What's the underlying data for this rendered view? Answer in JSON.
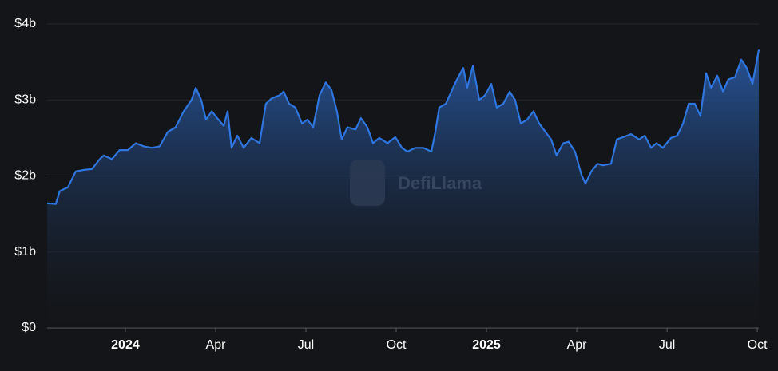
{
  "chart_data": {
    "type": "area",
    "watermark": "DefiLlama",
    "x": [
      -2.6,
      -2.31,
      -2.18,
      -1.91,
      -1.65,
      -1.38,
      -1.11,
      -0.85,
      -0.72,
      -0.45,
      -0.19,
      0.08,
      0.35,
      0.61,
      0.88,
      1.14,
      1.41,
      1.67,
      1.94,
      2.2,
      2.34,
      2.52,
      2.68,
      2.87,
      3.05,
      3.27,
      3.4,
      3.53,
      3.72,
      3.93,
      4.19,
      4.46,
      4.67,
      4.86,
      5.12,
      5.26,
      5.44,
      5.65,
      5.87,
      6.05,
      6.24,
      6.45,
      6.66,
      6.85,
      7.03,
      7.19,
      7.38,
      7.65,
      7.83,
      8.04,
      8.23,
      8.44,
      8.71,
      8.97,
      9.19,
      9.37,
      9.64,
      9.9,
      10.17,
      10.3,
      10.43,
      10.65,
      10.83,
      11.02,
      11.23,
      11.36,
      11.55,
      11.76,
      11.95,
      12.16,
      12.34,
      12.56,
      12.77,
      12.95,
      13.14,
      13.35,
      13.56,
      13.75,
      13.96,
      14.15,
      14.33,
      14.55,
      14.73,
      14.94,
      15.16,
      15.29,
      15.48,
      15.69,
      15.87,
      16.14,
      16.33,
      16.54,
      16.8,
      17.07,
      17.26,
      17.47,
      17.65,
      17.86,
      18.13,
      18.34,
      18.53,
      18.72,
      18.92,
      19.11,
      19.3,
      19.46,
      19.67,
      19.86,
      20.04,
      20.26,
      20.47,
      20.65,
      20.84,
      21.05
    ],
    "series": [
      {
        "color": "#2f76e0",
        "values": [
          1.64,
          1.63,
          1.8,
          1.85,
          2.06,
          2.08,
          2.09,
          2.22,
          2.27,
          2.22,
          2.34,
          2.34,
          2.43,
          2.39,
          2.37,
          2.39,
          2.58,
          2.64,
          2.85,
          3.0,
          3.16,
          3.0,
          2.74,
          2.85,
          2.76,
          2.66,
          2.85,
          2.37,
          2.53,
          2.37,
          2.5,
          2.43,
          2.95,
          3.02,
          3.06,
          3.11,
          2.95,
          2.9,
          2.69,
          2.74,
          2.64,
          3.06,
          3.23,
          3.13,
          2.85,
          2.48,
          2.64,
          2.61,
          2.76,
          2.64,
          2.43,
          2.5,
          2.43,
          2.51,
          2.37,
          2.32,
          2.37,
          2.37,
          2.32,
          2.58,
          2.9,
          2.95,
          3.11,
          3.27,
          3.42,
          3.16,
          3.45,
          3.0,
          3.06,
          3.21,
          2.9,
          2.95,
          3.11,
          3.0,
          2.69,
          2.74,
          2.85,
          2.69,
          2.58,
          2.48,
          2.27,
          2.43,
          2.45,
          2.32,
          2.01,
          1.9,
          2.06,
          2.16,
          2.14,
          2.16,
          2.48,
          2.51,
          2.55,
          2.48,
          2.53,
          2.37,
          2.43,
          2.37,
          2.5,
          2.53,
          2.69,
          2.95,
          2.95,
          2.79,
          3.35,
          3.16,
          3.32,
          3.11,
          3.27,
          3.3,
          3.53,
          3.42,
          3.21,
          3.66
        ]
      }
    ],
    "xlim": [
      -2.6,
      21.05
    ],
    "xticks": [
      {
        "value": 0,
        "label": "2024"
      },
      {
        "value": 3,
        "label": "Apr"
      },
      {
        "value": 6,
        "label": "Jul"
      },
      {
        "value": 9,
        "label": "Oct"
      },
      {
        "value": 12,
        "label": "2025"
      },
      {
        "value": 15,
        "label": "Apr"
      },
      {
        "value": 18,
        "label": "Jul"
      },
      {
        "value": 21,
        "label": "Oct"
      }
    ],
    "ylim": [
      0,
      4
    ],
    "yticks": [
      {
        "value": 0,
        "label": "$0"
      },
      {
        "value": 1,
        "label": "$1b"
      },
      {
        "value": 2,
        "label": "$2b"
      },
      {
        "value": 3,
        "label": "$3b"
      },
      {
        "value": 4,
        "label": "$4b"
      }
    ],
    "grid": true
  }
}
